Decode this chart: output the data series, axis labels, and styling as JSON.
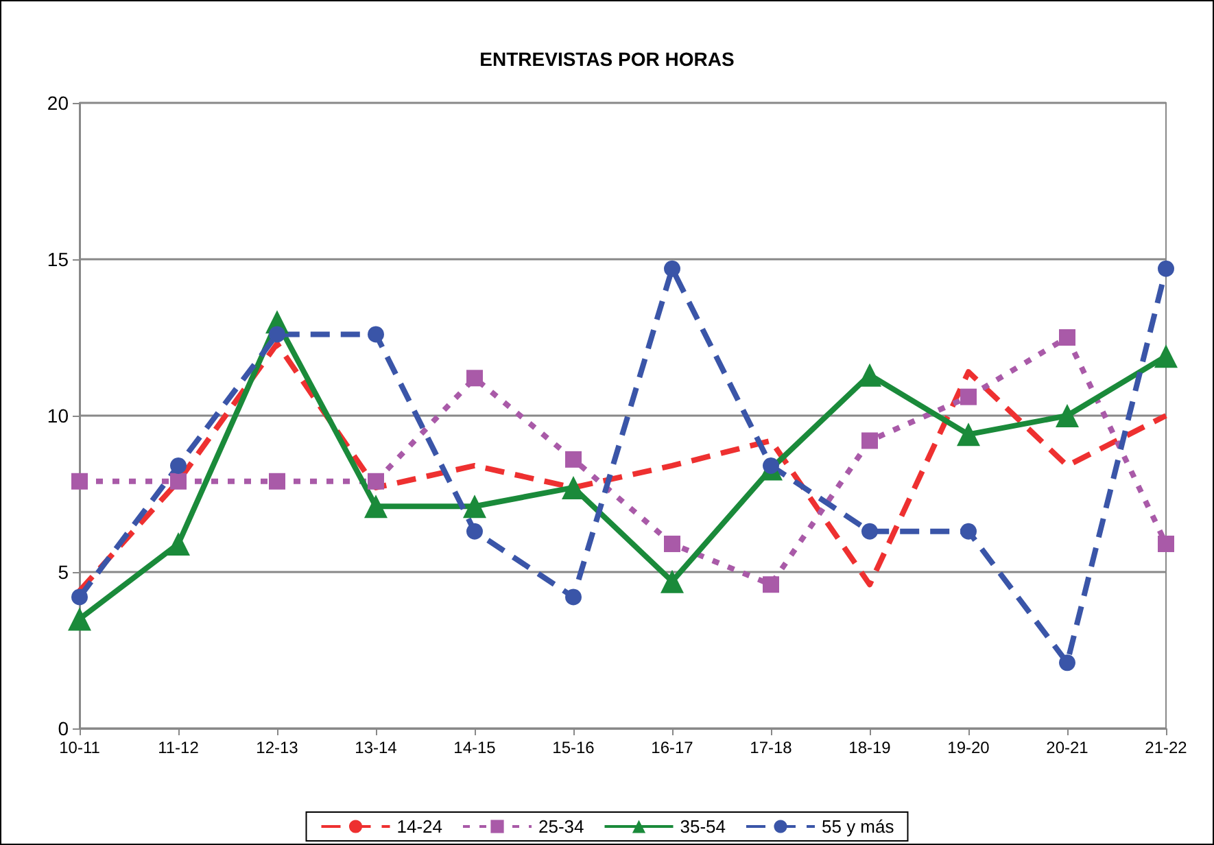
{
  "chart_data": {
    "type": "line",
    "title": "ENTREVISTAS POR HORAS",
    "categories": [
      "10-11",
      "11-12",
      "12-13",
      "13-14",
      "14-15",
      "15-16",
      "16-17",
      "17-18",
      "18-19",
      "19-20",
      "20-21",
      "21-22"
    ],
    "series": [
      {
        "name": "14-24",
        "color": "#ee3030",
        "line_style": "dashed",
        "marker": "none",
        "values": [
          4.4,
          7.9,
          12.3,
          7.7,
          8.4,
          7.7,
          8.4,
          9.2,
          4.6,
          11.4,
          8.4,
          10.0
        ]
      },
      {
        "name": "25-34",
        "color": "#a95aa8",
        "line_style": "dotted",
        "marker": "square",
        "values": [
          7.9,
          7.9,
          7.9,
          7.9,
          11.2,
          8.6,
          5.9,
          4.6,
          9.2,
          10.6,
          12.5,
          5.9
        ]
      },
      {
        "name": "35-54",
        "color": "#1a8a3a",
        "line_style": "solid",
        "marker": "triangle",
        "values": [
          3.5,
          5.9,
          13.0,
          7.1,
          7.1,
          7.7,
          4.7,
          8.3,
          11.3,
          9.4,
          10.0,
          11.9
        ]
      },
      {
        "name": "55 y más",
        "color": "#3a55a8",
        "line_style": "dashed",
        "marker": "circle",
        "values": [
          4.2,
          8.4,
          12.6,
          12.6,
          6.3,
          4.2,
          14.7,
          8.4,
          6.3,
          6.3,
          2.1,
          14.7
        ]
      }
    ],
    "ylim": [
      0,
      20
    ],
    "yticks": [
      0,
      5,
      10,
      15,
      20
    ],
    "grid": "y",
    "legend": "bottom"
  }
}
